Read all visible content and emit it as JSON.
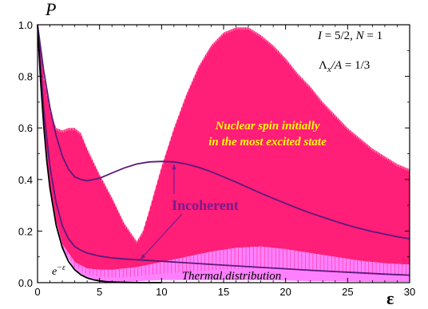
{
  "chart_data": {
    "type": "area",
    "title": "",
    "xlabel": "ε",
    "ylabel": "P",
    "xlim": [
      0,
      30
    ],
    "ylim": [
      0,
      1.0
    ],
    "x_ticks": [
      0,
      5,
      10,
      15,
      20,
      25,
      30
    ],
    "x_tick_labels": [
      "0",
      "5",
      "10",
      "15",
      "20",
      "25",
      "30"
    ],
    "y_ticks": [
      0,
      0.2,
      0.4,
      0.6,
      0.8,
      1.0
    ],
    "y_tick_labels": [
      "0.0",
      "0.2",
      "0.4",
      "0.6",
      "0.8",
      "1.0"
    ],
    "grid": false,
    "bands": [
      {
        "color": "#ff1e78",
        "upper": {
          "x": [
            0,
            0.5,
            1,
            1.5,
            2,
            2.5,
            3,
            3.5,
            4,
            5,
            6,
            7,
            8,
            8.5,
            9,
            10,
            11,
            12,
            13,
            14,
            15,
            16,
            17,
            18,
            19,
            20,
            21,
            22,
            23,
            24,
            25,
            26,
            27,
            28,
            29,
            30
          ],
          "y": [
            1.0,
            0.8,
            0.67,
            0.6,
            0.59,
            0.6,
            0.6,
            0.58,
            0.52,
            0.42,
            0.33,
            0.23,
            0.16,
            0.2,
            0.28,
            0.45,
            0.6,
            0.73,
            0.84,
            0.92,
            0.97,
            0.99,
            0.99,
            0.96,
            0.92,
            0.87,
            0.81,
            0.76,
            0.7,
            0.65,
            0.6,
            0.56,
            0.52,
            0.49,
            0.46,
            0.44
          ]
        },
        "lower": {
          "x": [
            0,
            0.5,
            1,
            1.5,
            2,
            3,
            4,
            5,
            6,
            7,
            8,
            9,
            10,
            12,
            14,
            16,
            18,
            20,
            22,
            24,
            26,
            28,
            30
          ],
          "y": [
            1.0,
            0.62,
            0.38,
            0.24,
            0.15,
            0.08,
            0.055,
            0.05,
            0.05,
            0.055,
            0.06,
            0.07,
            0.08,
            0.1,
            0.12,
            0.135,
            0.14,
            0.13,
            0.115,
            0.1,
            0.085,
            0.075,
            0.07
          ]
        }
      },
      {
        "color": "#ff80ff",
        "upper": {
          "x": [
            0,
            0.5,
            1,
            1.5,
            2,
            3,
            4,
            5,
            6,
            7,
            8,
            9,
            10,
            12,
            14,
            16,
            18,
            20,
            22,
            24,
            26,
            28,
            30
          ],
          "y": [
            1.0,
            0.62,
            0.38,
            0.24,
            0.15,
            0.08,
            0.055,
            0.05,
            0.05,
            0.055,
            0.06,
            0.07,
            0.08,
            0.1,
            0.12,
            0.135,
            0.14,
            0.13,
            0.115,
            0.1,
            0.085,
            0.075,
            0.07
          ]
        },
        "lower": {
          "x": [
            0,
            0.5,
            1,
            1.5,
            2,
            3,
            4,
            5,
            6,
            7,
            8,
            9,
            10,
            12,
            14,
            16,
            18,
            20,
            22,
            24,
            26,
            28,
            30
          ],
          "y": [
            1.0,
            0.6,
            0.36,
            0.22,
            0.135,
            0.05,
            0.02,
            0.008,
            0.003,
            0.003,
            0.005,
            0.008,
            0.01,
            0.01,
            0.01,
            0.01,
            0.01,
            0.008,
            0.006,
            0.005,
            0.004,
            0.003,
            0.003
          ]
        }
      }
    ],
    "series": [
      {
        "color": "#5a1a7a",
        "x": [
          0,
          0.5,
          1,
          1.5,
          2,
          2.5,
          3,
          3.5,
          4,
          5,
          6,
          7,
          8,
          9,
          10,
          11,
          12,
          13,
          14,
          15,
          16,
          17,
          18,
          19,
          20,
          21,
          22,
          23,
          24,
          25,
          26,
          27,
          28,
          29,
          30
        ],
        "y": [
          1.0,
          0.82,
          0.68,
          0.57,
          0.49,
          0.44,
          0.41,
          0.4,
          0.395,
          0.405,
          0.425,
          0.445,
          0.46,
          0.468,
          0.47,
          0.468,
          0.46,
          0.447,
          0.43,
          0.41,
          0.39,
          0.368,
          0.347,
          0.327,
          0.307,
          0.288,
          0.27,
          0.254,
          0.238,
          0.223,
          0.21,
          0.198,
          0.188,
          0.178,
          0.17
        ]
      },
      {
        "color": "#5a1a7a",
        "x": [
          0,
          0.5,
          1,
          1.5,
          2,
          2.5,
          3,
          3.5,
          4,
          5,
          6,
          7,
          8,
          10,
          12,
          14,
          16,
          18,
          20,
          22,
          24,
          26,
          28,
          30
        ],
        "y": [
          1.0,
          0.67,
          0.45,
          0.31,
          0.22,
          0.17,
          0.14,
          0.125,
          0.115,
          0.103,
          0.096,
          0.092,
          0.089,
          0.083,
          0.077,
          0.071,
          0.065,
          0.059,
          0.054,
          0.048,
          0.043,
          0.038,
          0.033,
          0.029
        ]
      },
      {
        "color": "#000000",
        "x": [
          0,
          0.25,
          0.5,
          0.75,
          1,
          1.5,
          2,
          2.5,
          3,
          3.5,
          4,
          4.5,
          5,
          5.5,
          6,
          7,
          8,
          9,
          10
        ],
        "y": [
          1.0,
          0.7788,
          0.6065,
          0.4724,
          0.3679,
          0.2231,
          0.1353,
          0.0821,
          0.0498,
          0.0302,
          0.0183,
          0.0111,
          0.0067,
          0.0041,
          0.0025,
          0.0009,
          0.0003,
          0.0001,
          0.0
        ]
      }
    ],
    "annotations": [
      {
        "label_lines": [
          "I = 5/2,   N = 1"
        ],
        "color": "#000000"
      },
      {
        "label_lines": [
          "Λx/A = 1/3"
        ],
        "color": "#000000"
      },
      {
        "label_lines": [
          "Nuclear spin initially",
          "in the most excited state"
        ],
        "color": "#ffff00"
      },
      {
        "label_lines": [
          "Incoherent"
        ],
        "color": "#7a1a8c"
      },
      {
        "label_lines": [
          "Thermal distribution"
        ],
        "color": "#000000"
      },
      {
        "label_lines": [
          "e−ε"
        ],
        "color": "#000000"
      }
    ]
  }
}
